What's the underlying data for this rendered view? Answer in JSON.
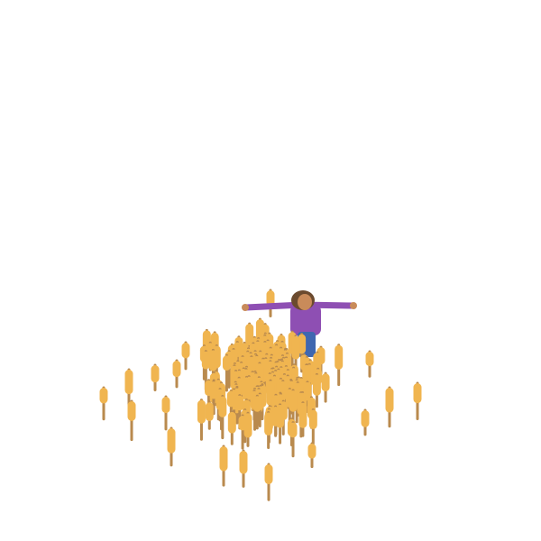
{
  "scene": {
    "background": "#ffffff",
    "stalk_color": "#b98a4e",
    "head_color": "#f0b550",
    "character": {
      "shirt_color": "#8e4fb3",
      "skin_color": "#c98b5a",
      "hair_color": "#6b4a2e",
      "pants_color": "#3f67b0"
    },
    "icons": [
      "wheat-stalk-icon",
      "player-character-icon"
    ]
  }
}
